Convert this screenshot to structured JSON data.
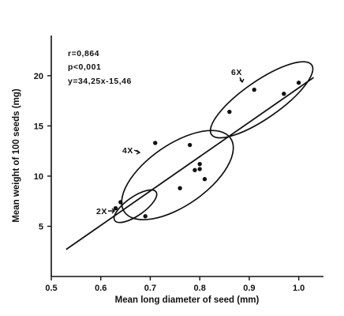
{
  "chart_data": {
    "type": "scatter",
    "xlabel": "Mean long diameter of seed (mm)",
    "ylabel": "Mean weight of 100 seeds (mg)",
    "xlim": [
      0.5,
      1.05
    ],
    "ylim": [
      0,
      24
    ],
    "x_ticks": [
      0.5,
      0.6,
      0.7,
      0.8,
      0.9,
      1.0
    ],
    "x_tick_labels": [
      "0.5",
      "0.6",
      "0.7",
      "0.8",
      "0.9",
      "1.0"
    ],
    "y_ticks": [
      5,
      10,
      15,
      20
    ],
    "y_tick_labels": [
      "5",
      "10",
      "15",
      "20"
    ],
    "grid": false,
    "series": [
      {
        "values": [
          {
            "x": 0.63,
            "y": 6.8
          },
          {
            "x": 0.64,
            "y": 7.4
          },
          {
            "x": 0.69,
            "y": 6.0
          },
          {
            "x": 0.71,
            "y": 13.3
          },
          {
            "x": 0.76,
            "y": 8.8
          },
          {
            "x": 0.78,
            "y": 13.1
          },
          {
            "x": 0.79,
            "y": 10.6
          },
          {
            "x": 0.8,
            "y": 11.2
          },
          {
            "x": 0.8,
            "y": 10.7
          },
          {
            "x": 0.81,
            "y": 9.7
          },
          {
            "x": 0.86,
            "y": 16.4
          },
          {
            "x": 0.91,
            "y": 18.6
          },
          {
            "x": 0.97,
            "y": 18.2
          },
          {
            "x": 1.0,
            "y": 19.3
          }
        ]
      }
    ],
    "regression": {
      "slope": 34.25,
      "intercept": -15.46,
      "x_range": [
        0.53,
        1.03
      ]
    },
    "stats": [
      "r=0,864",
      "p<0,001",
      "y=34,25x-15,46"
    ],
    "groups": [
      {
        "label": "2X",
        "cx": 0.67,
        "cy": 7.0,
        "rx": 0.035,
        "ry": 1.5
      },
      {
        "label": "4X",
        "cx": 0.755,
        "cy": 10.1,
        "rx": 0.09,
        "ry": 4.9
      },
      {
        "label": "6X",
        "cx": 0.925,
        "cy": 17.6,
        "rx": 0.085,
        "ry": 3.0
      }
    ]
  }
}
